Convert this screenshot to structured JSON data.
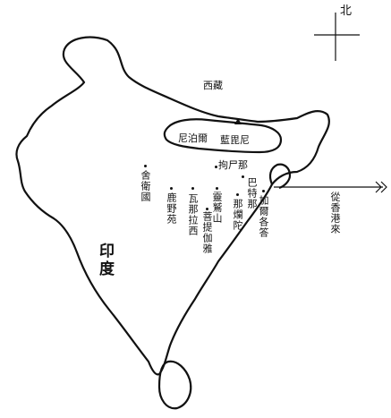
{
  "map": {
    "north_label": "北",
    "regions": {
      "tibet": "西藏",
      "nepal": "尼泊爾",
      "lumbini": "藍毘尼",
      "india": "印度"
    },
    "places": {
      "kushinagar": "拘尸那",
      "shravasti": "舍衛國",
      "sarnath": "鹿野苑",
      "varanasi": "瓦那拉西",
      "patna": "巴特那",
      "nalanda": "那爛陀",
      "vulture_peak": "靈鷲山",
      "bodhgaya": "菩提伽雅",
      "kolkata": "加爾各答"
    },
    "route_label": "從香港來",
    "colors": {
      "ink": "#111111",
      "paper": "#ffffff"
    },
    "icons": [
      "compass-cross",
      "mountain-marker-triangle",
      "arrow-left-chevrons"
    ]
  }
}
